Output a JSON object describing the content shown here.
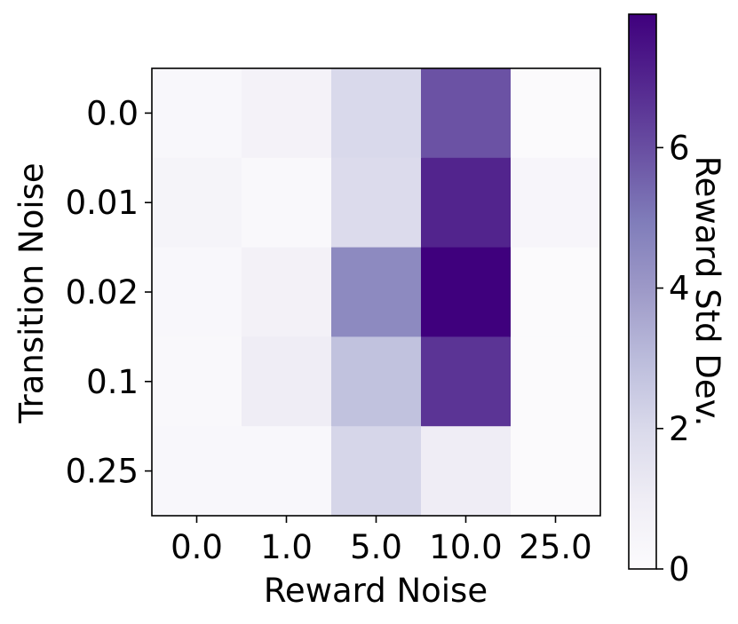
{
  "chart_data": {
    "type": "heatmap",
    "title": "",
    "xlabel": "Reward Noise",
    "ylabel": "Transition Noise",
    "x_categories": [
      "0.0",
      "1.0",
      "5.0",
      "10.0",
      "25.0"
    ],
    "y_categories": [
      "0.0",
      "0.01",
      "0.02",
      "0.1",
      "0.25"
    ],
    "values": [
      [
        0.3,
        0.6,
        2.0,
        5.9,
        0.1
      ],
      [
        0.5,
        0.2,
        1.9,
        7.0,
        0.4
      ],
      [
        0.3,
        0.7,
        4.5,
        7.9,
        0.1
      ],
      [
        0.2,
        1.0,
        2.8,
        6.6,
        0.1
      ],
      [
        0.3,
        0.3,
        2.1,
        1.0,
        0.1
      ]
    ],
    "colorbar": {
      "label": "Reward Std Dev.",
      "min": 0,
      "max": 7.9,
      "ticks": [
        "0",
        "2",
        "4",
        "6"
      ],
      "colormap": "Purples",
      "low_color": "#fcfbfd",
      "high_color": "#3f007d"
    },
    "grid": false
  }
}
